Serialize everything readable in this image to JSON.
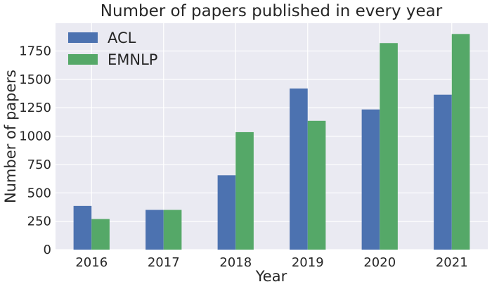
{
  "chart_data": {
    "type": "bar",
    "title": "Number of papers published in every year",
    "xlabel": "Year",
    "ylabel": "Number of papers",
    "categories": [
      "2016",
      "2017",
      "2018",
      "2019",
      "2020",
      "2021"
    ],
    "series": [
      {
        "name": "ACL",
        "color": "#4c72b0",
        "values": [
          385,
          350,
          655,
          1420,
          1235,
          1365
        ]
      },
      {
        "name": "EMNLP",
        "color": "#55a868",
        "values": [
          270,
          350,
          1035,
          1135,
          1820,
          1900
        ]
      }
    ],
    "ylim": [
      0,
      1995
    ],
    "yticks": [
      0,
      250,
      500,
      750,
      1000,
      1250,
      1500,
      1750
    ],
    "grid": true,
    "legend": "top-left",
    "background": "#eaeaf2"
  }
}
